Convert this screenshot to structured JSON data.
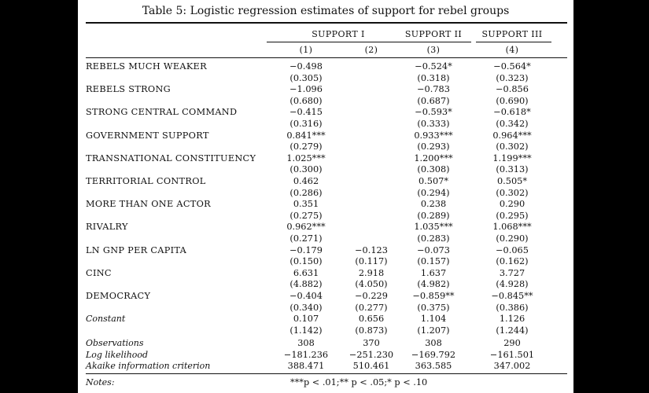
{
  "title": "Table 5: Logistic regression estimates of support for rebel groups",
  "groups": [
    "SUPPORT I",
    "SUPPORT II",
    "SUPPORT III"
  ],
  "columns": [
    "(1)",
    "(2)",
    "(3)",
    "(4)"
  ],
  "rows": [
    {
      "label": "REBELS MUCH WEAKER",
      "coef": [
        "−0.498",
        "",
        "−0.524*",
        "−0.564*"
      ],
      "se": [
        "(0.305)",
        "",
        "(0.318)",
        "(0.323)"
      ]
    },
    {
      "label": "REBELS STRONG",
      "coef": [
        "−1.096",
        "",
        "−0.783",
        "−0.856"
      ],
      "se": [
        "(0.680)",
        "",
        "(0.687)",
        "(0.690)"
      ]
    },
    {
      "label": "STRONG CENTRAL COMMAND",
      "coef": [
        "−0.415",
        "",
        "−0.593*",
        "−0.618*"
      ],
      "se": [
        "(0.316)",
        "",
        "(0.333)",
        "(0.342)"
      ]
    },
    {
      "label": "GOVERNMENT SUPPORT",
      "coef": [
        "0.841***",
        "",
        "0.933***",
        "0.964***"
      ],
      "se": [
        "(0.279)",
        "",
        "(0.293)",
        "(0.302)"
      ]
    },
    {
      "label": "TRANSNATIONAL CONSTITUENCY",
      "coef": [
        "1.025***",
        "",
        "1.200***",
        "1.199***"
      ],
      "se": [
        "(0.300)",
        "",
        "(0.308)",
        "(0.313)"
      ]
    },
    {
      "label": "TERRITORIAL CONTROL",
      "coef": [
        "0.462",
        "",
        "0.507*",
        "0.505*"
      ],
      "se": [
        "(0.286)",
        "",
        "(0.294)",
        "(0.302)"
      ]
    },
    {
      "label": "MORE THAN ONE ACTOR",
      "coef": [
        "0.351",
        "",
        "0.238",
        "0.290"
      ],
      "se": [
        "(0.275)",
        "",
        "(0.289)",
        "(0.295)"
      ]
    },
    {
      "label": "RIVALRY",
      "coef": [
        "0.962***",
        "",
        "1.035***",
        "1.068***"
      ],
      "se": [
        "(0.271)",
        "",
        "(0.283)",
        "(0.290)"
      ]
    },
    {
      "label": "LN GNP PER CAPITA",
      "coef": [
        "−0.179",
        "−0.123",
        "−0.073",
        "−0.065"
      ],
      "se": [
        "(0.150)",
        "(0.117)",
        "(0.157)",
        "(0.162)"
      ]
    },
    {
      "label": "CINC",
      "coef": [
        "6.631",
        "2.918",
        "1.637",
        "3.727"
      ],
      "se": [
        "(4.882)",
        "(4.050)",
        "(4.982)",
        "(4.928)"
      ]
    },
    {
      "label": "DEMOCRACY",
      "coef": [
        "−0.404",
        "−0.229",
        "−0.859**",
        "−0.845**"
      ],
      "se": [
        "(0.340)",
        "(0.277)",
        "(0.375)",
        "(0.386)"
      ]
    },
    {
      "label": "Constant",
      "italic": true,
      "coef": [
        "0.107",
        "0.656",
        "1.104",
        "1.126"
      ],
      "se": [
        "(1.142)",
        "(0.873)",
        "(1.207)",
        "(1.244)"
      ]
    }
  ],
  "stats": [
    {
      "label": "Observations",
      "values": [
        "308",
        "370",
        "308",
        "290"
      ]
    },
    {
      "label": "Log likelihood",
      "values": [
        "−181.236",
        "−251.230",
        "−169.792",
        "−161.501"
      ]
    },
    {
      "label": "Akaike information criterion",
      "values": [
        "388.471",
        "510.461",
        "363.585",
        "347.002"
      ]
    }
  ],
  "notes_label": "Notes:",
  "notes_text": "***p < .01;** p < .05;* p < .10"
}
